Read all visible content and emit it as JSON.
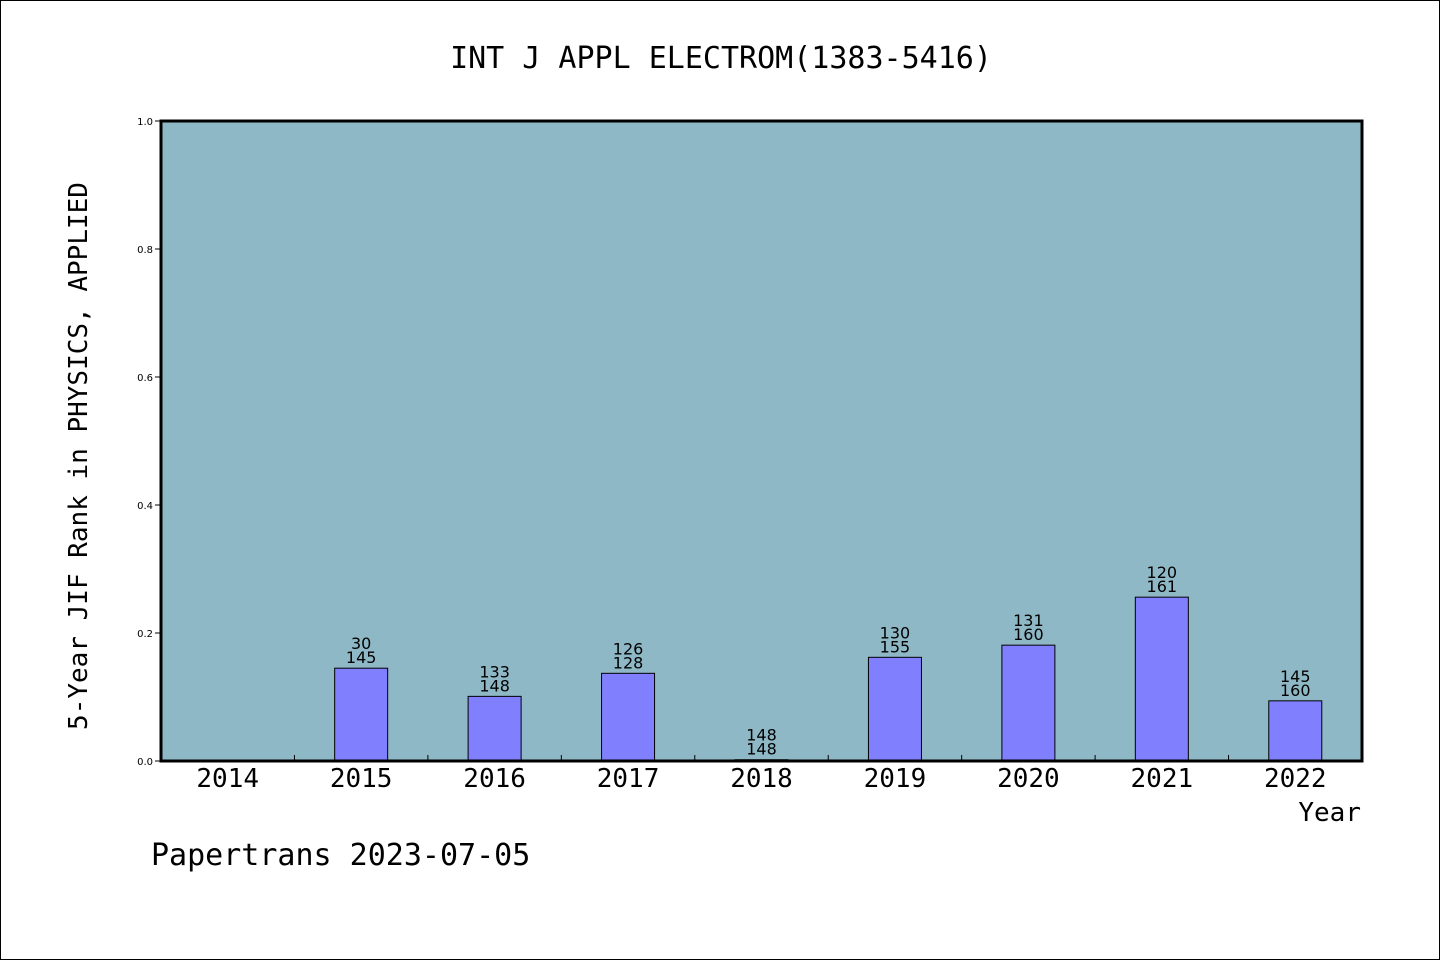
{
  "chart_data": {
    "type": "bar",
    "title": "INT J APPL ELECTROM(1383-5416)",
    "xlabel": "Year",
    "ylabel": "5-Year JIF Rank in PHYSICS, APPLIED",
    "ylim": [
      0,
      1.0
    ],
    "yticks": [
      "0.0",
      "0.2",
      "0.4",
      "0.6",
      "0.8",
      "1.0"
    ],
    "categories": [
      "2014",
      "2015",
      "2016",
      "2017",
      "2018",
      "2019",
      "2020",
      "2021",
      "2022"
    ],
    "values": [
      null,
      0.145,
      0.101,
      0.137,
      0.002,
      0.162,
      0.181,
      0.256,
      0.094
    ],
    "label_top": [
      "",
      "30",
      "133",
      "126",
      "148",
      "130",
      "131",
      "120",
      "145"
    ],
    "label_bottom": [
      "",
      "145",
      "148",
      "128",
      "148",
      "155",
      "160",
      "161",
      "160"
    ],
    "grid": false,
    "colors": {
      "plot_background": "#8fb8c6",
      "bar_fill": "#8080ff",
      "axis": "#000000"
    }
  },
  "footer": {
    "credit": "Papertrans 2023-07-05"
  }
}
